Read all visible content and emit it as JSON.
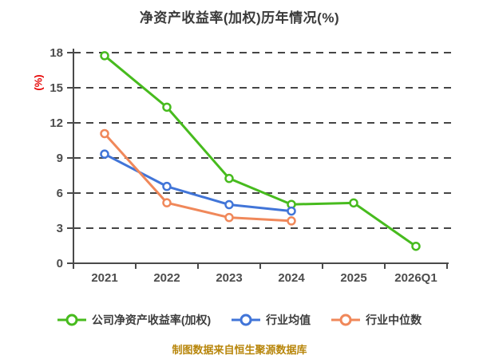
{
  "chart_data": {
    "type": "line",
    "title": "净资产收益率(加权)历年情况(%)",
    "ylabel": "(%)",
    "xlabel": "",
    "categories": [
      "2021",
      "2022",
      "2023",
      "2024",
      "2025",
      "2026Q1"
    ],
    "yticks": [
      0,
      3,
      6,
      9,
      12,
      15,
      18
    ],
    "ylim": [
      0,
      18
    ],
    "grid": true,
    "grid_style": "dashed",
    "legend_position": "bottom",
    "series": [
      {
        "key": "company-roe",
        "name": "公司净资产收益率(加权)",
        "color": "#47bb1e",
        "values": [
          17.74,
          13.34,
          7.25,
          5.03,
          5.16,
          1.45
        ]
      },
      {
        "key": "industry-mean",
        "name": "行业均值",
        "color": "#4175d8",
        "values": [
          9.33,
          6.57,
          5.01,
          4.46,
          null,
          null
        ]
      },
      {
        "key": "industry-median",
        "name": "行业中位数",
        "color": "#f0885a",
        "values": [
          11.08,
          5.17,
          3.91,
          3.62,
          null,
          null
        ]
      }
    ]
  },
  "footer": {
    "text": "制图数据来自恒生聚源数据库",
    "color": "#b8860b"
  },
  "styles": {
    "title_color": "#3a3a3a",
    "tick_color": "#4d4d4d",
    "axis_color": "#4a4a4a",
    "grid_color": "#454545",
    "ylabel_color": "#e60000",
    "legend_text_color": "#3d3d3d",
    "background": "#ffffff",
    "marker_fill": "#ffffff"
  }
}
